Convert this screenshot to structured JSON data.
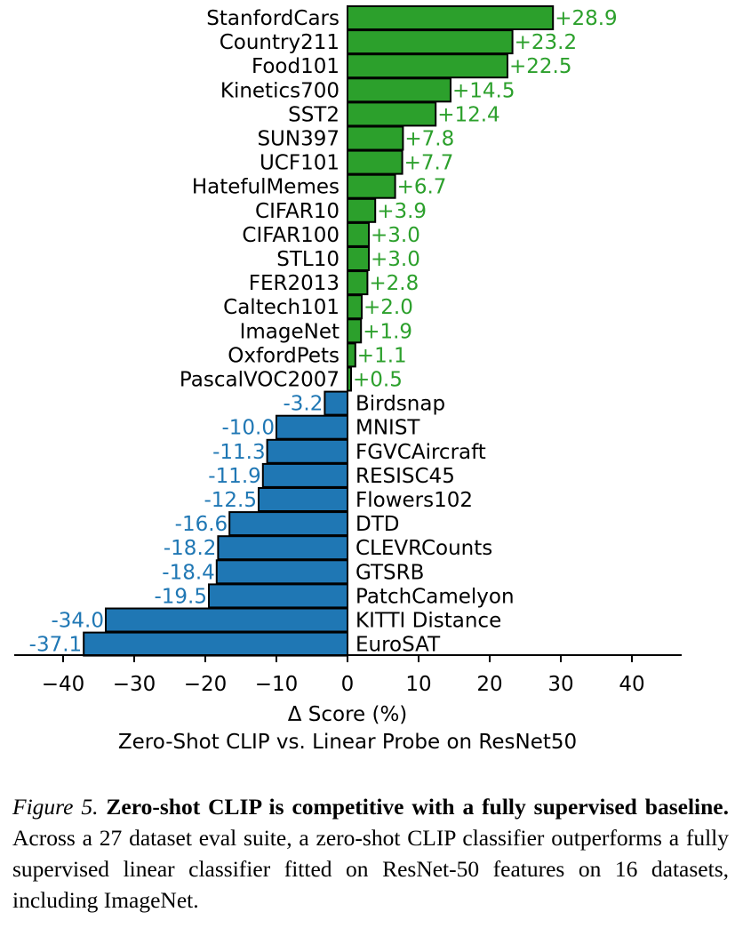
{
  "chart_data": {
    "type": "bar",
    "orientation": "horizontal",
    "categories": [
      "StanfordCars",
      "Country211",
      "Food101",
      "Kinetics700",
      "SST2",
      "SUN397",
      "UCF101",
      "HatefulMemes",
      "CIFAR10",
      "CIFAR100",
      "STL10",
      "FER2013",
      "Caltech101",
      "ImageNet",
      "OxfordPets",
      "PascalVOC2007",
      "Birdsnap",
      "MNIST",
      "FGVCAircraft",
      "RESISC45",
      "Flowers102",
      "DTD",
      "CLEVRCounts",
      "GTSRB",
      "PatchCamelyon",
      "KITTI Distance",
      "EuroSAT"
    ],
    "values": [
      28.9,
      23.2,
      22.5,
      14.5,
      12.4,
      7.8,
      7.7,
      6.7,
      3.9,
      3.0,
      3.0,
      2.8,
      2.0,
      1.9,
      1.1,
      0.5,
      -3.2,
      -10.0,
      -11.3,
      -11.9,
      -12.5,
      -16.6,
      -18.2,
      -18.4,
      -19.5,
      -34.0,
      -37.1
    ],
    "value_labels": [
      "+28.9",
      "+23.2",
      "+22.5",
      "+14.5",
      "+12.4",
      "+7.8",
      "+7.7",
      "+6.7",
      "+3.9",
      "+3.0",
      "+3.0",
      "+2.8",
      "+2.0",
      "+1.9",
      "+1.1",
      "+0.5",
      "-3.2",
      "-10.0",
      "-11.3",
      "-11.9",
      "-12.5",
      "-16.6",
      "-18.2",
      "-18.4",
      "-19.5",
      "-34.0",
      "-37.1"
    ],
    "xlabel": "Δ Score (%)",
    "title": "Zero-Shot CLIP vs. Linear Probe on ResNet50",
    "xlim": [
      -47,
      47
    ],
    "xticks": [
      -40,
      -30,
      -20,
      -10,
      0,
      10,
      20,
      30,
      40
    ],
    "xtick_labels": [
      "−40",
      "−30",
      "−20",
      "−10",
      "0",
      "10",
      "20",
      "30",
      "40"
    ],
    "grid": false,
    "colors": {
      "positive": "#2ca02c",
      "negative": "#1f77b4",
      "edge": "#000000"
    }
  },
  "caption": {
    "figure_label": "Figure 5.",
    "bold_text": "Zero-shot CLIP is competitive with a fully supervised baseline.",
    "body_text": "Across a 27 dataset eval suite, a zero-shot CLIP classifier outperforms a fully supervised linear classifier fitted on ResNet-50 features on 16 datasets, including ImageNet."
  }
}
